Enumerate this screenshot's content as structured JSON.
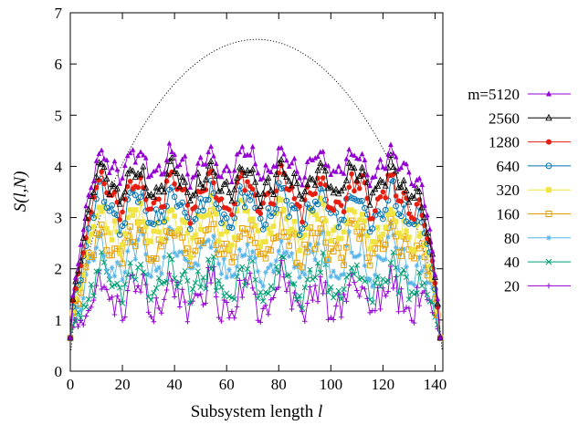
{
  "chart_data": {
    "type": "line",
    "xlabel": "Subsystem length",
    "xlabel_var": "l",
    "ylabel": "S(l,N)",
    "xlim": [
      0,
      143
    ],
    "ylim": [
      0,
      7
    ],
    "xticks": [
      0,
      20,
      40,
      60,
      80,
      100,
      120,
      140
    ],
    "yticks": [
      0,
      1,
      2,
      3,
      4,
      5,
      6,
      7
    ],
    "grid": false,
    "legend_position": "right",
    "reference_curve": {
      "style": "dotted",
      "color": "#000000",
      "x_range": [
        0,
        143
      ],
      "peak": 6.48
    },
    "series": [
      {
        "name": "m=5120",
        "legend": "m=5120",
        "color": "#9400d3",
        "marker": "triangle-filled",
        "base": 4.05,
        "amp": 0.22,
        "noise": 0.12,
        "peak": 4.35
      },
      {
        "name": "2560",
        "legend": "2560",
        "color": "#000000",
        "marker": "triangle-open",
        "base": 3.7,
        "amp": 0.25,
        "noise": 0.14,
        "peak": 4.2
      },
      {
        "name": "1280",
        "legend": "1280",
        "color": "#e51e10",
        "marker": "circle-filled",
        "base": 3.45,
        "amp": 0.28,
        "noise": 0.16,
        "peak": 4.15
      },
      {
        "name": "640",
        "legend": "640",
        "color": "#0072b2",
        "marker": "circle-open",
        "base": 3.2,
        "amp": 0.3,
        "noise": 0.18,
        "peak": 3.95
      },
      {
        "name": "320",
        "legend": "320",
        "color": "#f0e442",
        "marker": "square-filled",
        "base": 2.85,
        "amp": 0.3,
        "noise": 0.2,
        "peak": 3.4
      },
      {
        "name": "160",
        "legend": "160",
        "color": "#e69f00",
        "marker": "square-open",
        "base": 2.5,
        "amp": 0.3,
        "noise": 0.22,
        "peak": 3.2
      },
      {
        "name": "80",
        "legend": "80",
        "color": "#56b4e9",
        "marker": "asterisk",
        "base": 2.2,
        "amp": 0.3,
        "noise": 0.25,
        "peak": 2.8
      },
      {
        "name": "40",
        "legend": "40",
        "color": "#009e73",
        "marker": "cross",
        "base": 1.75,
        "amp": 0.28,
        "noise": 0.25,
        "peak": 2.3
      },
      {
        "name": "20",
        "legend": "20",
        "color": "#9400d3",
        "marker": "plus",
        "base": 1.45,
        "amp": 0.28,
        "noise": 0.3,
        "peak": 1.75
      }
    ]
  }
}
